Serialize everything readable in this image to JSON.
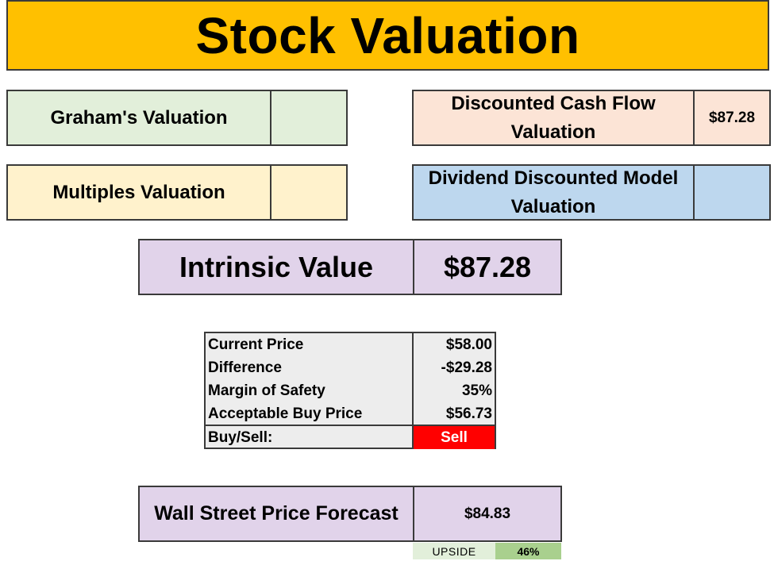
{
  "title": "Stock Valuation",
  "valuations": {
    "graham": {
      "label": "Graham's Valuation",
      "value": ""
    },
    "multiples": {
      "label": "Multiples Valuation",
      "value": ""
    },
    "dcf": {
      "label_line1": "Discounted Cash Flow",
      "label_line2": "Valuation",
      "value": "$87.28"
    },
    "ddm": {
      "label_line1": "Dividend Discounted Model",
      "label_line2": "Valuation",
      "value": ""
    }
  },
  "intrinsic": {
    "label": "Intrinsic Value",
    "value": "$87.28"
  },
  "metrics": [
    {
      "label": "Current Price",
      "value": "$58.00"
    },
    {
      "label": "Difference",
      "value": "-$29.28"
    },
    {
      "label": "Margin of Safety",
      "value": "35%"
    },
    {
      "label": "Acceptable Buy Price",
      "value": "$56.73"
    }
  ],
  "buy_sell": {
    "label": "Buy/Sell:",
    "value": "Sell"
  },
  "forecast": {
    "label": "Wall Street Price Forecast",
    "value": "$84.83"
  },
  "upside": {
    "label": "UPSIDE",
    "value": "46%"
  },
  "colors": {
    "title_bg": "#ffc000",
    "graham_bg": "#e2efda",
    "multiples_bg": "#fff2cc",
    "dcf_bg": "#fce4d6",
    "ddm_bg": "#bdd7ee",
    "intrinsic_bg": "#e1d3ea",
    "sell_bg": "#ff0000",
    "upside_bg": "#a9d08e"
  }
}
